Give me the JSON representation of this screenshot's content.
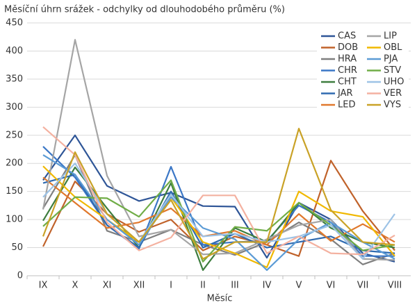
{
  "chart_data": {
    "type": "line",
    "title": "Měsíční úhrn srážek - odchylky od dlouhodobého průměru (%)",
    "x_label": "Měsíc",
    "categories": [
      "IX",
      "X",
      "XI",
      "XII",
      "I",
      "II",
      "III",
      "IV",
      "V",
      "VI",
      "VII",
      "VIII"
    ],
    "ylim": [
      0,
      450
    ],
    "yticks": [
      0,
      50,
      100,
      150,
      200,
      250,
      300,
      350,
      400,
      450
    ],
    "grid": true,
    "series": [
      {
        "name": "CAS",
        "color": "#2e5597",
        "values": [
          170,
          250,
          160,
          133,
          148,
          124,
          123,
          32,
          130,
          100,
          40,
          25
        ]
      },
      {
        "name": "DOB",
        "color": "#c0622a",
        "values": [
          52,
          168,
          110,
          78,
          100,
          45,
          70,
          55,
          35,
          205,
          115,
          45
        ]
      },
      {
        "name": "HRA",
        "color": "#7f7f7f",
        "values": [
          120,
          215,
          80,
          60,
          82,
          55,
          37,
          60,
          95,
          65,
          20,
          40
        ]
      },
      {
        "name": "CHR",
        "color": "#3b77c6",
        "values": [
          230,
          175,
          90,
          48,
          194,
          55,
          60,
          62,
          125,
          95,
          35,
          35
        ]
      },
      {
        "name": "CHT",
        "color": "#3d7d3e",
        "values": [
          98,
          193,
          120,
          50,
          165,
          10,
          85,
          60,
          130,
          85,
          60,
          50
        ]
      },
      {
        "name": "JAR",
        "color": "#2f6ab0",
        "values": [
          165,
          180,
          90,
          50,
          150,
          50,
          75,
          50,
          60,
          70,
          45,
          40
        ]
      },
      {
        "name": "LED",
        "color": "#e0782c",
        "values": [
          175,
          130,
          85,
          95,
          120,
          70,
          80,
          55,
          110,
          62,
          92,
          60
        ]
      },
      {
        "name": "LIP",
        "color": "#a5a5a5",
        "values": [
          118,
          420,
          178,
          70,
          82,
          38,
          40,
          65,
          90,
          100,
          30,
          28
        ]
      },
      {
        "name": "OBL",
        "color": "#f0b800",
        "values": [
          195,
          140,
          100,
          60,
          140,
          60,
          40,
          15,
          150,
          115,
          105,
          35
        ]
      },
      {
        "name": "PJA",
        "color": "#5b9bd5",
        "values": [
          215,
          180,
          100,
          55,
          140,
          85,
          65,
          10,
          65,
          95,
          60,
          30
        ]
      },
      {
        "name": "STV",
        "color": "#70ad47",
        "values": [
          88,
          140,
          138,
          105,
          170,
          25,
          87,
          80,
          130,
          90,
          45,
          55
        ]
      },
      {
        "name": "UHO",
        "color": "#9dc3e6",
        "values": [
          140,
          200,
          110,
          60,
          145,
          70,
          75,
          60,
          70,
          90,
          30,
          110
        ]
      },
      {
        "name": "VER",
        "color": "#f4b1a0",
        "values": [
          265,
          215,
          95,
          45,
          68,
          143,
          143,
          40,
          70,
          40,
          38,
          72
        ]
      },
      {
        "name": "VYS",
        "color": "#c9a227",
        "values": [
          70,
          220,
          110,
          60,
          135,
          30,
          60,
          60,
          262,
          117,
          60,
          55
        ]
      }
    ]
  }
}
